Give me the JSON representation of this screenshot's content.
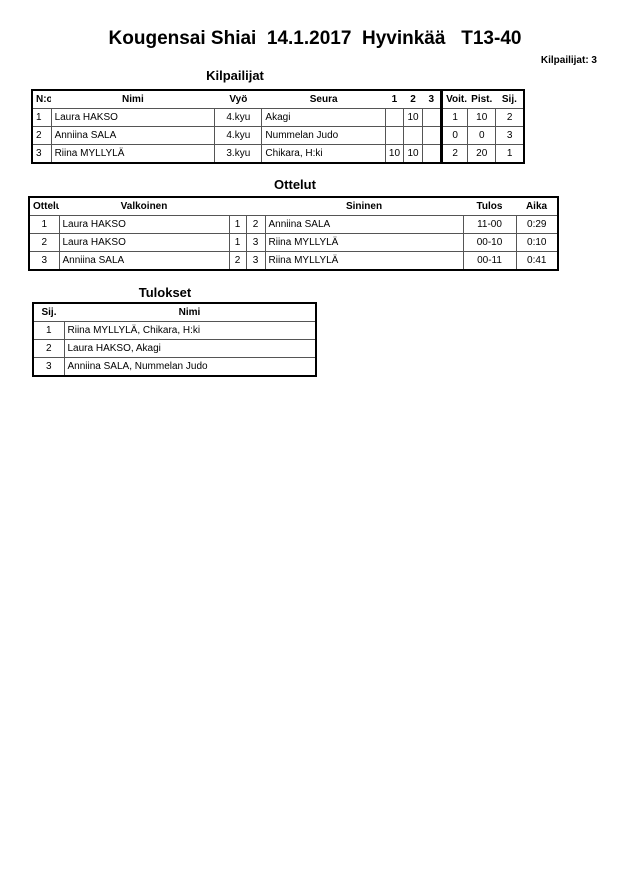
{
  "title": "Kougensai Shiai  14.1.2017  Hyvinkää   T13-40",
  "competitor_count": "Kilpailijat: 3",
  "competitors": {
    "heading": "Kilpailijat",
    "headers": [
      "N:o",
      "Nimi",
      "Vyö",
      "Seura",
      "1",
      "2",
      "3",
      "Voit.",
      "Pist.",
      "Sij."
    ],
    "rows": [
      [
        "1",
        "Laura HAKSO",
        "4.kyu",
        "Akagi",
        "",
        "10",
        "",
        "1",
        "10",
        "2"
      ],
      [
        "2",
        "Anniina SALA",
        "4.kyu",
        "Nummelan Judo",
        "",
        "",
        "",
        "0",
        "0",
        "3"
      ],
      [
        "3",
        "Riina MYLLYLÄ",
        "3.kyu",
        "Chikara, H:ki",
        "10",
        "10",
        "",
        "2",
        "20",
        "1"
      ]
    ]
  },
  "matches": {
    "heading": "Ottelut",
    "headers": [
      "Ottelu",
      "Valkoinen",
      "",
      "",
      "Sininen",
      "Tulos",
      "Aika"
    ],
    "rows": [
      [
        "1",
        "Laura HAKSO",
        "1",
        "2",
        "Anniina SALA",
        "11-00",
        "0:29"
      ],
      [
        "2",
        "Laura HAKSO",
        "1",
        "3",
        "Riina MYLLYLÄ",
        "00-10",
        "0:10"
      ],
      [
        "3",
        "Anniina SALA",
        "2",
        "3",
        "Riina MYLLYLÄ",
        "00-11",
        "0:41"
      ]
    ]
  },
  "results": {
    "heading": "Tulokset",
    "headers": [
      "Sij.",
      "Nimi"
    ],
    "rows": [
      [
        "1",
        "Riina MYLLYLÄ, Chikara, H:ki"
      ],
      [
        "2",
        "Laura HAKSO, Akagi"
      ],
      [
        "3",
        "Anniina SALA, Nummelan Judo"
      ]
    ]
  }
}
